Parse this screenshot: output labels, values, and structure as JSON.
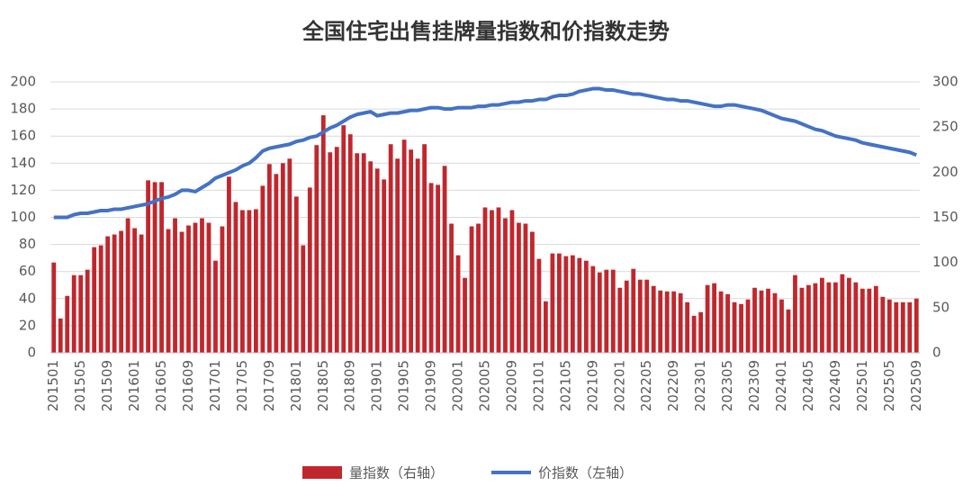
{
  "chart_data": {
    "type": "bar",
    "title": "全国住宅出售挂牌量指数和价指数走势",
    "categories": [
      "201501",
      null,
      null,
      null,
      "201505",
      null,
      null,
      null,
      "201509",
      null,
      null,
      null,
      "201601",
      null,
      null,
      null,
      "201605",
      null,
      null,
      null,
      "201609",
      null,
      null,
      null,
      "201701",
      null,
      null,
      null,
      "201705",
      null,
      null,
      null,
      "201709",
      null,
      null,
      null,
      "201801",
      null,
      null,
      null,
      "201805",
      null,
      null,
      null,
      "201809",
      null,
      null,
      null,
      "201901",
      null,
      null,
      null,
      "201905",
      null,
      null,
      null,
      "201909",
      null,
      null,
      null,
      "202001",
      null,
      null,
      null,
      "202005",
      null,
      null,
      null,
      "202009",
      null,
      null,
      null,
      "202101",
      null,
      null,
      null,
      "202105",
      null,
      null,
      null,
      "202109",
      null,
      null,
      null,
      "202201",
      null,
      null,
      null,
      "202205",
      null,
      null,
      null,
      "202209",
      null,
      null,
      null,
      "202301",
      null,
      null,
      null,
      "202305",
      null,
      null,
      null,
      "202309",
      null,
      null,
      null,
      "202401",
      null,
      null,
      null,
      "202405",
      null,
      null,
      null,
      "202409",
      null,
      null,
      null,
      "202501",
      null,
      null,
      null,
      "202505",
      null,
      null,
      null,
      "202509"
    ],
    "series": [
      {
        "name": "量指数（右轴）",
        "type": "bar",
        "axis": "y2",
        "color": "#c0272d",
        "values": [
          100,
          38,
          63,
          86,
          86,
          92,
          117,
          119,
          129,
          131,
          135,
          149,
          138,
          131,
          191,
          189,
          189,
          137,
          149,
          134,
          141,
          144,
          149,
          144,
          102,
          140,
          195,
          167,
          158,
          158,
          159,
          185,
          209,
          198,
          210,
          215,
          173,
          119,
          183,
          230,
          263,
          222,
          228,
          252,
          242,
          221,
          221,
          212,
          204,
          192,
          231,
          215,
          236,
          225,
          215,
          231,
          188,
          186,
          207,
          143,
          108,
          83,
          140,
          143,
          161,
          158,
          161,
          149,
          158,
          144,
          143,
          134,
          104,
          57,
          110,
          110,
          107,
          108,
          105,
          102,
          96,
          89,
          92,
          92,
          72,
          80,
          93,
          81,
          81,
          74,
          69,
          68,
          68,
          66,
          56,
          41,
          45,
          75,
          77,
          68,
          65,
          56,
          54,
          59,
          72,
          69,
          71,
          66,
          59,
          48,
          86,
          72,
          75,
          77,
          83,
          78,
          78,
          87,
          83,
          78,
          71,
          71,
          74,
          62,
          59,
          56,
          56,
          56,
          60
        ]
      },
      {
        "name": "价指数（左轴）",
        "type": "line",
        "axis": "y",
        "color": "#4472c4",
        "values": [
          100,
          100,
          100,
          102,
          103,
          103,
          104,
          105,
          105,
          106,
          106,
          107,
          108,
          109,
          110,
          112,
          114,
          115,
          117,
          120,
          120,
          119,
          122,
          125,
          129,
          131,
          133,
          135,
          138,
          140,
          144,
          149,
          151,
          152,
          153,
          154,
          156,
          157,
          159,
          160,
          163,
          166,
          168,
          171,
          174,
          176,
          177,
          178,
          175,
          176,
          177,
          177,
          178,
          179,
          179,
          180,
          181,
          181,
          180,
          180,
          181,
          181,
          181,
          182,
          182,
          183,
          183,
          184,
          185,
          185,
          186,
          186,
          187,
          187,
          189,
          190,
          190,
          191,
          193,
          194,
          195,
          195,
          194,
          194,
          193,
          192,
          191,
          191,
          190,
          189,
          188,
          187,
          187,
          186,
          186,
          185,
          184,
          183,
          182,
          182,
          183,
          183,
          182,
          181,
          180,
          179,
          177,
          175,
          173,
          172,
          171,
          169,
          167,
          165,
          164,
          162,
          160,
          159,
          158,
          157,
          155,
          154,
          153,
          152,
          151,
          150,
          149,
          148,
          146
        ]
      }
    ],
    "ylim": [
      0,
      200
    ],
    "yticks": [
      0,
      20,
      40,
      60,
      80,
      100,
      120,
      140,
      160,
      180,
      200
    ],
    "y2lim": [
      0,
      300
    ],
    "y2ticks": [
      0,
      50,
      100,
      150,
      200,
      250,
      300
    ],
    "grid": true
  }
}
